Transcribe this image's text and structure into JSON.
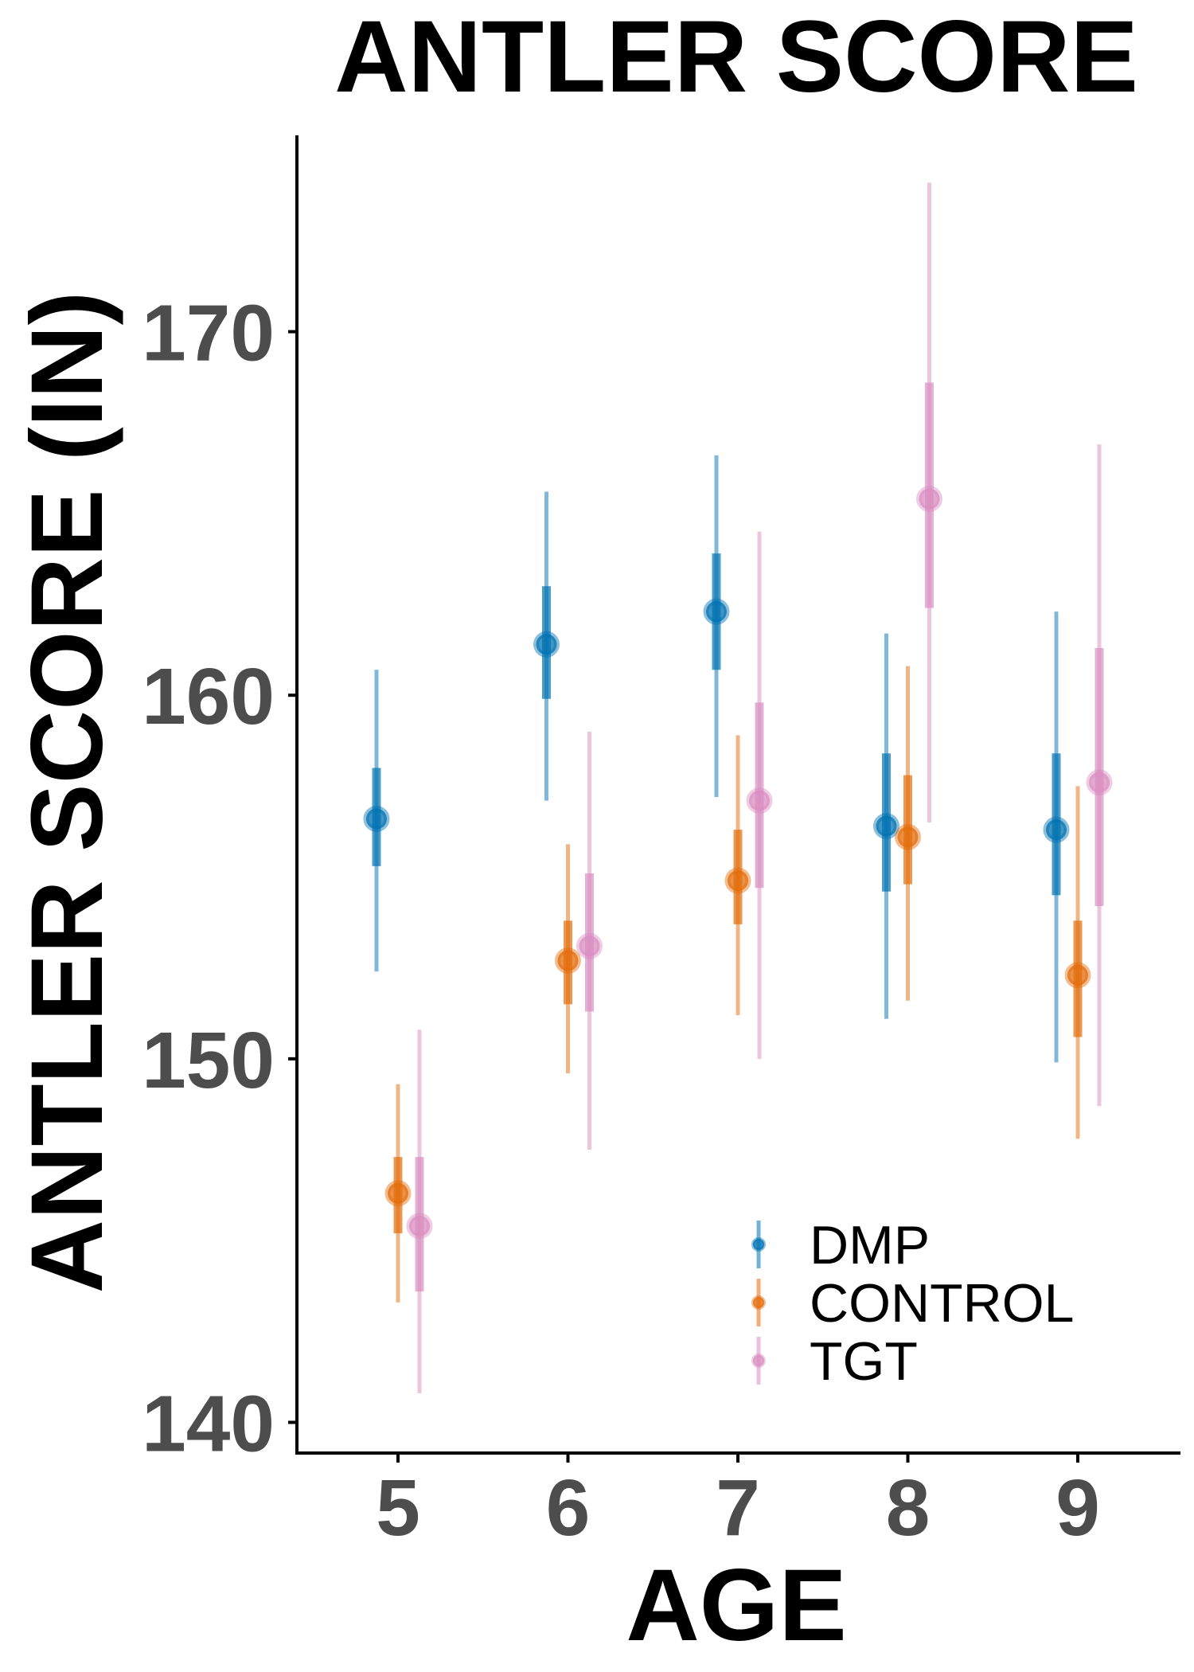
{
  "chart_data": {
    "type": "scatter",
    "title": "ANTLER SCORE",
    "xlabel": "AGE",
    "ylabel": "ANTLER SCORE (IN)",
    "categories": [
      "5",
      "6",
      "7",
      "8",
      "9"
    ],
    "yticks": [
      "140",
      "150",
      "160",
      "170"
    ],
    "ylim": [
      139.2,
      175.4
    ],
    "grid": false,
    "legend_position": "bottom-right",
    "series": [
      {
        "name": "DMP",
        "color": "#0072B2",
        "estimate": [
          156.6,
          161.4,
          162.3,
          156.4,
          156.3
        ],
        "inner_interval": [
          [
            155.3,
            158.0
          ],
          [
            159.9,
            163.0
          ],
          [
            160.7,
            163.9
          ],
          [
            154.6,
            158.4
          ],
          [
            154.5,
            158.4
          ]
        ],
        "outer_interval": [
          [
            152.4,
            160.7
          ],
          [
            157.1,
            165.6
          ],
          [
            157.2,
            166.6
          ],
          [
            151.1,
            161.7
          ],
          [
            149.9,
            162.3
          ]
        ]
      },
      {
        "name": "CONTROL",
        "color": "#E36C0A",
        "estimate": [
          146.3,
          152.7,
          154.9,
          156.1,
          152.3
        ],
        "inner_interval": [
          [
            145.2,
            147.3
          ],
          [
            151.5,
            153.8
          ],
          [
            153.7,
            156.3
          ],
          [
            154.8,
            157.8
          ],
          [
            150.6,
            153.8
          ]
        ],
        "outer_interval": [
          [
            143.3,
            149.3
          ],
          [
            149.6,
            155.9
          ],
          [
            151.2,
            158.9
          ],
          [
            151.6,
            160.8
          ],
          [
            147.8,
            157.5
          ]
        ]
      },
      {
        "name": "TGT",
        "color": "#D98EC0",
        "estimate": [
          145.4,
          153.1,
          157.1,
          165.4,
          157.6
        ],
        "inner_interval": [
          [
            143.6,
            147.3
          ],
          [
            151.3,
            155.1
          ],
          [
            154.7,
            159.8
          ],
          [
            162.4,
            168.6
          ],
          [
            154.2,
            161.3
          ]
        ],
        "outer_interval": [
          [
            140.8,
            150.8
          ],
          [
            147.5,
            159.0
          ],
          [
            150.0,
            164.5
          ],
          [
            156.5,
            174.1
          ],
          [
            148.7,
            166.9
          ]
        ]
      }
    ]
  }
}
